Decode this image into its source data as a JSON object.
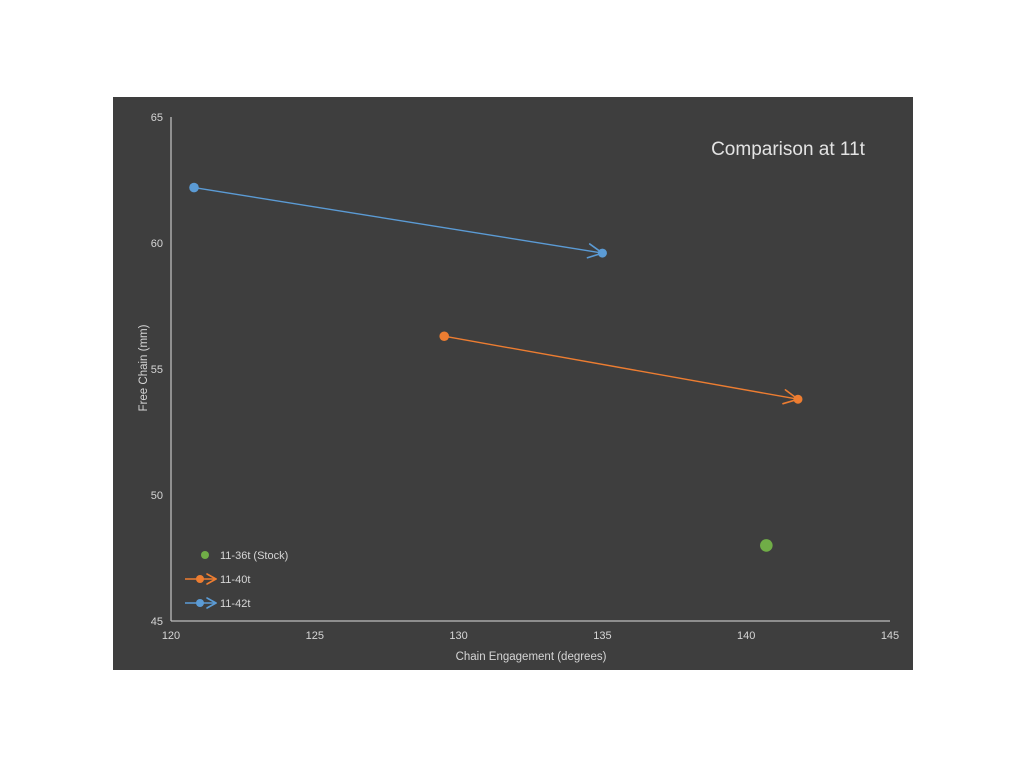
{
  "page": {
    "background": "#ffffff"
  },
  "panel": {
    "background": "#3E3E3E"
  },
  "chart_data": {
    "type": "scatter",
    "title": "Comparison at 11t",
    "xlabel": "Chain Engagement (degrees)",
    "ylabel": "Free Chain (mm)",
    "xlim": [
      120,
      145
    ],
    "ylim": [
      45,
      65
    ],
    "x_ticks": [
      120,
      125,
      130,
      135,
      140,
      145
    ],
    "y_ticks": [
      65,
      60,
      55,
      50,
      45
    ],
    "grid": false,
    "legend_position": "bottom-left",
    "axis_color": "#BDBDBD",
    "text_color": "#D6D6D6",
    "title_color": "#E3E3E3",
    "series": [
      {
        "name": "11-42t",
        "color": "#5B9BD5",
        "style": "arrow",
        "points": [
          [
            120.8,
            62.2
          ],
          [
            135.0,
            59.6
          ]
        ]
      },
      {
        "name": "11-40t",
        "color": "#ED7D31",
        "style": "arrow",
        "points": [
          [
            129.5,
            56.3
          ],
          [
            141.8,
            53.8
          ]
        ]
      },
      {
        "name": "11-36t (Stock)",
        "color": "#70AD47",
        "style": "point",
        "points": [
          [
            140.7,
            48.0
          ]
        ]
      }
    ],
    "legend": [
      {
        "label": "11-36t (Stock)",
        "series": "11-36t (Stock)"
      },
      {
        "label": "11-40t",
        "series": "11-40t"
      },
      {
        "label": "11-42t",
        "series": "11-42t"
      }
    ]
  }
}
